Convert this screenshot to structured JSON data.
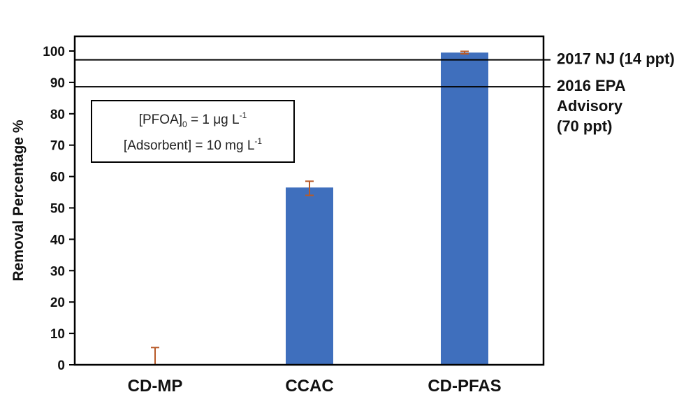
{
  "chart_data": {
    "type": "bar",
    "categories": [
      "CD-MP",
      "CCAC",
      "CD-PFAS"
    ],
    "values": [
      0,
      56.5,
      99.5
    ],
    "error_bars": [
      {
        "low": 0,
        "high": 5.5
      },
      {
        "low": 54,
        "high": 58.5
      },
      {
        "low": 99.1,
        "high": 99.9
      }
    ],
    "ylabel": "Removal Percentage %",
    "xlabel": "",
    "ylim": [
      0,
      100
    ],
    "yticks": [
      0,
      10,
      20,
      30,
      40,
      50,
      60,
      70,
      80,
      90,
      100
    ],
    "bar_color": "#3f6fbd",
    "error_color": "#b85a28",
    "grid": false,
    "reference_lines": [
      {
        "y": 97.2,
        "label_lines": [
          "2017 NJ (14 ppt)"
        ]
      },
      {
        "y": 88.6,
        "label_lines": [
          "2016 EPA",
          "Advisory",
          "(70 ppt)"
        ]
      }
    ],
    "annotation": {
      "line1": {
        "prefix": "[PFOA]",
        "sub": "0",
        "middle": " = 1 μg L",
        "sup": "-1"
      },
      "line2": {
        "prefix": "[Adsorbent] = 10 mg L",
        "sup": "-1"
      }
    }
  }
}
